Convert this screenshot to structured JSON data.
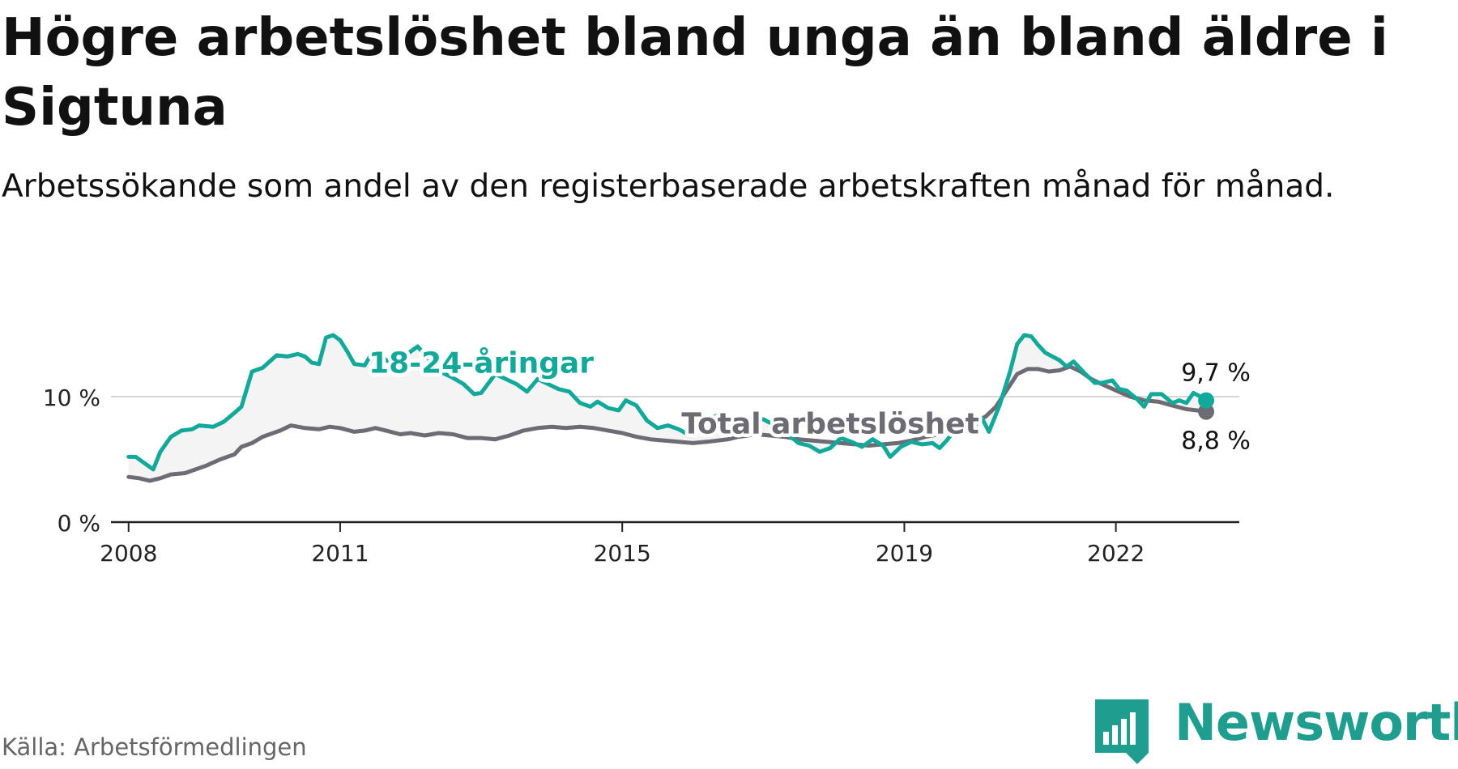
{
  "title": "Högre arbetslöshet bland unga än bland äldre i Sigtuna",
  "subtitle": "Arbetssökande som andel av den registerbaserade arbetskraften månad för månad.",
  "source": "Källa: Arbetsförmedlingen",
  "brand": {
    "name": "Newsworthy",
    "icon": "newsworthy-logo-icon",
    "color": "#1f9e8f"
  },
  "chart_data": {
    "type": "line",
    "x_range": [
      2007.75,
      2023.75
    ],
    "y_range": [
      0,
      16
    ],
    "y_ticks": [
      {
        "value": 0,
        "label": "0 %"
      },
      {
        "value": 10,
        "label": "10 %"
      }
    ],
    "x_ticks": [
      {
        "value": 2008,
        "label": "2008"
      },
      {
        "value": 2011,
        "label": "2011"
      },
      {
        "value": 2015,
        "label": "2015"
      },
      {
        "value": 2019,
        "label": "2019"
      },
      {
        "value": 2022,
        "label": "2022"
      }
    ],
    "grid": "horizontal",
    "area_between_series": true,
    "series": [
      {
        "name": "18-24-åringar",
        "color": "#12a89a",
        "end_label": "9,7 %",
        "points": [
          [
            2008.0,
            5.2
          ],
          [
            2008.1,
            5.2
          ],
          [
            2008.2,
            4.8
          ],
          [
            2008.35,
            4.2
          ],
          [
            2008.45,
            5.6
          ],
          [
            2008.6,
            6.8
          ],
          [
            2008.75,
            7.3
          ],
          [
            2008.9,
            7.4
          ],
          [
            2009.0,
            7.7
          ],
          [
            2009.2,
            7.6
          ],
          [
            2009.35,
            8.0
          ],
          [
            2009.5,
            8.7
          ],
          [
            2009.6,
            9.2
          ],
          [
            2009.75,
            12.0
          ],
          [
            2009.9,
            12.3
          ],
          [
            2010.0,
            12.8
          ],
          [
            2010.1,
            13.3
          ],
          [
            2010.25,
            13.2
          ],
          [
            2010.4,
            13.4
          ],
          [
            2010.5,
            13.2
          ],
          [
            2010.6,
            12.7
          ],
          [
            2010.7,
            12.6
          ],
          [
            2010.8,
            14.7
          ],
          [
            2010.9,
            14.9
          ],
          [
            2011.0,
            14.5
          ],
          [
            2011.1,
            13.6
          ],
          [
            2011.2,
            12.6
          ],
          [
            2011.35,
            12.5
          ],
          [
            2011.45,
            13.5
          ],
          [
            2011.6,
            13.1
          ],
          [
            2011.75,
            12.6
          ],
          [
            2011.85,
            12.4
          ],
          [
            2011.95,
            13.4
          ],
          [
            2012.1,
            14.0
          ],
          [
            2012.25,
            13.0
          ],
          [
            2012.45,
            11.9
          ],
          [
            2012.6,
            11.5
          ],
          [
            2012.75,
            11.0
          ],
          [
            2012.9,
            10.2
          ],
          [
            2013.0,
            10.3
          ],
          [
            2013.2,
            11.8
          ],
          [
            2013.35,
            11.4
          ],
          [
            2013.5,
            11.0
          ],
          [
            2013.65,
            10.4
          ],
          [
            2013.8,
            11.4
          ],
          [
            2013.95,
            11.0
          ],
          [
            2014.1,
            10.6
          ],
          [
            2014.25,
            10.4
          ],
          [
            2014.4,
            9.5
          ],
          [
            2014.55,
            9.2
          ],
          [
            2014.65,
            9.6
          ],
          [
            2014.8,
            9.1
          ],
          [
            2014.95,
            8.9
          ],
          [
            2015.05,
            9.7
          ],
          [
            2015.2,
            9.3
          ],
          [
            2015.35,
            8.1
          ],
          [
            2015.5,
            7.5
          ],
          [
            2015.65,
            7.7
          ],
          [
            2015.8,
            7.4
          ],
          [
            2015.9,
            7.1
          ],
          [
            2016.05,
            8.3
          ],
          [
            2016.2,
            8.2
          ],
          [
            2016.35,
            8.5
          ],
          [
            2016.5,
            8.3
          ],
          [
            2016.65,
            8.2
          ],
          [
            2016.8,
            8.1
          ],
          [
            2017.0,
            8.2
          ],
          [
            2017.2,
            7.6
          ],
          [
            2017.35,
            7.0
          ],
          [
            2017.5,
            6.3
          ],
          [
            2017.65,
            6.1
          ],
          [
            2017.8,
            5.6
          ],
          [
            2017.95,
            5.9
          ],
          [
            2018.1,
            6.7
          ],
          [
            2018.25,
            6.4
          ],
          [
            2018.4,
            6.0
          ],
          [
            2018.55,
            6.6
          ],
          [
            2018.7,
            6.1
          ],
          [
            2018.8,
            5.2
          ],
          [
            2018.95,
            6.0
          ],
          [
            2019.1,
            6.4
          ],
          [
            2019.25,
            6.2
          ],
          [
            2019.4,
            6.3
          ],
          [
            2019.5,
            5.9
          ],
          [
            2019.6,
            6.5
          ],
          [
            2019.75,
            7.6
          ],
          [
            2019.9,
            8.1
          ],
          [
            2020.0,
            7.7
          ],
          [
            2020.1,
            8.3
          ],
          [
            2020.2,
            7.2
          ],
          [
            2020.35,
            9.3
          ],
          [
            2020.5,
            12.0
          ],
          [
            2020.6,
            14.2
          ],
          [
            2020.7,
            14.9
          ],
          [
            2020.8,
            14.8
          ],
          [
            2020.9,
            14.1
          ],
          [
            2021.0,
            13.5
          ],
          [
            2021.2,
            12.9
          ],
          [
            2021.3,
            12.4
          ],
          [
            2021.4,
            12.8
          ],
          [
            2021.55,
            11.9
          ],
          [
            2021.7,
            11.1
          ],
          [
            2021.8,
            11.1
          ],
          [
            2021.95,
            11.3
          ],
          [
            2022.05,
            10.6
          ],
          [
            2022.15,
            10.5
          ],
          [
            2022.3,
            9.8
          ],
          [
            2022.4,
            9.2
          ],
          [
            2022.5,
            10.2
          ],
          [
            2022.65,
            10.2
          ],
          [
            2022.8,
            9.5
          ],
          [
            2022.9,
            9.7
          ],
          [
            2023.0,
            9.5
          ],
          [
            2023.1,
            10.3
          ],
          [
            2023.2,
            10.0
          ],
          [
            2023.28,
            9.7
          ]
        ]
      },
      {
        "name": "Total arbetslöshet",
        "color": "#6d6b73",
        "end_label": "8,8 %",
        "points": [
          [
            2008.0,
            3.6
          ],
          [
            2008.15,
            3.5
          ],
          [
            2008.3,
            3.3
          ],
          [
            2008.45,
            3.5
          ],
          [
            2008.6,
            3.8
          ],
          [
            2008.8,
            3.9
          ],
          [
            2008.95,
            4.2
          ],
          [
            2009.1,
            4.5
          ],
          [
            2009.3,
            5.0
          ],
          [
            2009.5,
            5.4
          ],
          [
            2009.6,
            6.0
          ],
          [
            2009.75,
            6.3
          ],
          [
            2009.9,
            6.8
          ],
          [
            2010.0,
            7.0
          ],
          [
            2010.15,
            7.3
          ],
          [
            2010.3,
            7.7
          ],
          [
            2010.5,
            7.5
          ],
          [
            2010.7,
            7.4
          ],
          [
            2010.85,
            7.6
          ],
          [
            2011.0,
            7.5
          ],
          [
            2011.2,
            7.2
          ],
          [
            2011.35,
            7.3
          ],
          [
            2011.5,
            7.5
          ],
          [
            2011.65,
            7.3
          ],
          [
            2011.85,
            7.0
          ],
          [
            2012.0,
            7.1
          ],
          [
            2012.2,
            6.9
          ],
          [
            2012.4,
            7.1
          ],
          [
            2012.6,
            7.0
          ],
          [
            2012.8,
            6.7
          ],
          [
            2013.0,
            6.7
          ],
          [
            2013.2,
            6.6
          ],
          [
            2013.4,
            6.9
          ],
          [
            2013.6,
            7.3
          ],
          [
            2013.8,
            7.5
          ],
          [
            2014.0,
            7.6
          ],
          [
            2014.2,
            7.5
          ],
          [
            2014.4,
            7.6
          ],
          [
            2014.6,
            7.5
          ],
          [
            2014.8,
            7.3
          ],
          [
            2015.0,
            7.1
          ],
          [
            2015.2,
            6.8
          ],
          [
            2015.4,
            6.6
          ],
          [
            2015.6,
            6.5
          ],
          [
            2015.8,
            6.4
          ],
          [
            2016.0,
            6.3
          ],
          [
            2016.2,
            6.4
          ],
          [
            2016.35,
            6.5
          ],
          [
            2016.5,
            6.6
          ],
          [
            2016.65,
            6.8
          ],
          [
            2016.9,
            7.0
          ],
          [
            2017.1,
            6.9
          ],
          [
            2017.3,
            6.8
          ],
          [
            2017.5,
            6.6
          ],
          [
            2017.7,
            6.5
          ],
          [
            2017.9,
            6.4
          ],
          [
            2018.1,
            6.3
          ],
          [
            2018.3,
            6.2
          ],
          [
            2018.5,
            6.1
          ],
          [
            2018.7,
            6.2
          ],
          [
            2018.9,
            6.3
          ],
          [
            2019.1,
            6.5
          ],
          [
            2019.3,
            6.8
          ],
          [
            2019.5,
            7.0
          ],
          [
            2019.7,
            7.3
          ],
          [
            2019.9,
            7.8
          ],
          [
            2020.0,
            8.0
          ],
          [
            2020.15,
            8.4
          ],
          [
            2020.3,
            9.2
          ],
          [
            2020.45,
            10.5
          ],
          [
            2020.6,
            11.8
          ],
          [
            2020.75,
            12.2
          ],
          [
            2020.9,
            12.2
          ],
          [
            2021.05,
            12.0
          ],
          [
            2021.2,
            12.1
          ],
          [
            2021.35,
            12.4
          ],
          [
            2021.5,
            12.0
          ],
          [
            2021.65,
            11.4
          ],
          [
            2021.8,
            11.0
          ],
          [
            2022.0,
            10.5
          ],
          [
            2022.2,
            10.0
          ],
          [
            2022.4,
            9.7
          ],
          [
            2022.6,
            9.6
          ],
          [
            2022.8,
            9.3
          ],
          [
            2023.0,
            9.0
          ],
          [
            2023.15,
            8.9
          ],
          [
            2023.28,
            8.8
          ]
        ]
      }
    ]
  }
}
